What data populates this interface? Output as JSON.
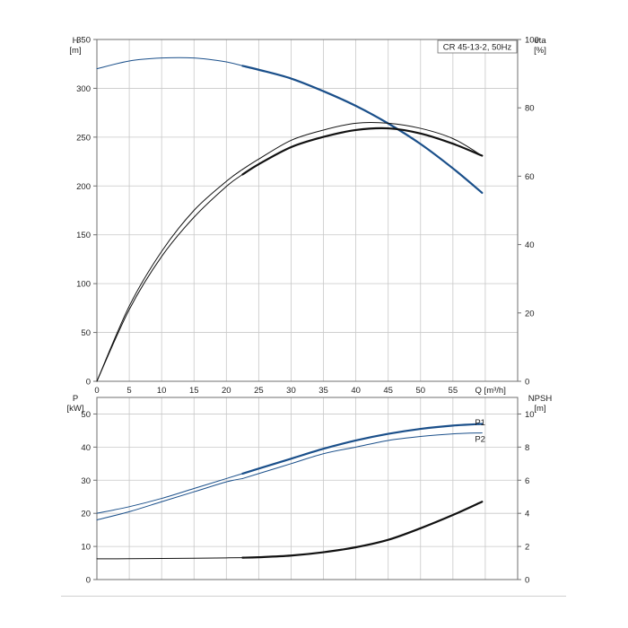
{
  "chart_data": [
    {
      "type": "line",
      "legend_box": "CR 45-13-2, 50Hz",
      "legend_placement": "top-right",
      "grid": true,
      "xlabel": "Q [m³/h]",
      "xlim": [
        0,
        65
      ],
      "x_ticks": [
        0,
        5,
        10,
        15,
        20,
        25,
        30,
        35,
        40,
        45,
        50,
        55
      ],
      "left_axis": {
        "label_line1": "H",
        "label_line2": "[m]",
        "ylim": [
          0,
          350
        ],
        "ticks": [
          0,
          50,
          100,
          150,
          200,
          250,
          300,
          350
        ]
      },
      "right_axis": {
        "label_line1": "eta",
        "label_line2": "[%]",
        "ylim": [
          0,
          100
        ],
        "ticks": [
          0,
          20,
          40,
          60,
          80,
          100
        ],
        "tick_start": 0
      },
      "series": [
        {
          "axis": "left",
          "color": "#1a4f8a",
          "x": [
            0,
            5,
            10,
            15,
            20,
            22.5
          ],
          "y": [
            320,
            328,
            331,
            331,
            327,
            323
          ],
          "weight": "thin"
        },
        {
          "axis": "left",
          "color": "#1a4f8a",
          "x": [
            22.5,
            25,
            30,
            35,
            40,
            45,
            50,
            55,
            59.5
          ],
          "y": [
            323,
            319,
            310,
            297,
            282,
            264,
            243,
            218,
            193
          ],
          "weight": "thick"
        },
        {
          "axis": "right",
          "color": "#111111",
          "x": [
            0,
            5,
            10,
            15,
            20,
            22.5
          ],
          "y": [
            0,
            22,
            38,
            50,
            58.5,
            62
          ],
          "weight": "thin"
        },
        {
          "axis": "right",
          "color": "#111111",
          "x": [
            22.5,
            25,
            30,
            35,
            40,
            45,
            50,
            55,
            59.5
          ],
          "y": [
            62,
            65,
            70.5,
            73.5,
            75.5,
            75.5,
            74,
            71,
            66
          ],
          "weight": "thin"
        },
        {
          "axis": "right",
          "color": "#111111",
          "x": [
            0,
            5,
            10,
            15,
            20,
            22.5
          ],
          "y": [
            0,
            21,
            36.5,
            48,
            57,
            60.5
          ],
          "weight": "thin"
        },
        {
          "axis": "right",
          "color": "#111111",
          "x": [
            22.5,
            25,
            30,
            35,
            40,
            45,
            50,
            55,
            59.5
          ],
          "y": [
            60.5,
            63.5,
            68.5,
            71.5,
            73.5,
            74,
            72.5,
            69.5,
            66
          ],
          "weight": "thick"
        }
      ]
    },
    {
      "type": "line",
      "grid": true,
      "xlim": [
        0,
        65
      ],
      "left_axis": {
        "label_line1": "P",
        "label_line2": "[kW]",
        "ylim": [
          0,
          55
        ],
        "ticks": [
          0,
          10,
          20,
          30,
          40,
          50
        ]
      },
      "right_axis": {
        "label_line1": "NPSH",
        "label_line2": "[m]",
        "ylim": [
          0,
          11
        ],
        "ticks": [
          0,
          2,
          4,
          6,
          8,
          10
        ],
        "tick_start": 0
      },
      "series": [
        {
          "name": "P1",
          "axis": "left",
          "color": "#1a4f8a",
          "x": [
            0,
            5,
            10,
            15,
            20,
            22.5
          ],
          "y": [
            20,
            22,
            24.5,
            27.5,
            30.5,
            32
          ],
          "weight": "thin"
        },
        {
          "name": "P1",
          "axis": "left",
          "color": "#1a4f8a",
          "x": [
            22.5,
            25,
            30,
            35,
            40,
            45,
            50,
            55,
            59.5
          ],
          "y": [
            32,
            33.5,
            36.5,
            39.5,
            42,
            44,
            45.5,
            46.5,
            47
          ],
          "weight": "thick"
        },
        {
          "name": "P2",
          "axis": "left",
          "color": "#1a4f8a",
          "x": [
            0,
            5,
            10,
            15,
            20,
            22.5
          ],
          "y": [
            18,
            20.5,
            23.5,
            26.5,
            29.5,
            30.5
          ],
          "weight": "thin"
        },
        {
          "name": "P2",
          "axis": "left",
          "color": "#1a4f8a",
          "x": [
            22.5,
            25,
            30,
            35,
            40,
            45,
            50,
            55,
            59.5
          ],
          "y": [
            30.5,
            32,
            35,
            38,
            40,
            42,
            43.2,
            44,
            44.3
          ],
          "weight": "thin"
        },
        {
          "axis": "right",
          "color": "#111111",
          "x": [
            0,
            5,
            10,
            15,
            20,
            22.5
          ],
          "y": [
            1.25,
            1.26,
            1.27,
            1.29,
            1.31,
            1.32
          ],
          "weight": "thin"
        },
        {
          "axis": "right",
          "color": "#111111",
          "x": [
            22.5,
            25,
            30,
            35,
            40,
            45,
            50,
            55,
            59.5
          ],
          "y": [
            1.32,
            1.35,
            1.45,
            1.65,
            1.95,
            2.4,
            3.1,
            3.9,
            4.7
          ],
          "weight": "thick"
        }
      ],
      "series_labels": [
        {
          "text": "P1",
          "x": 59.5,
          "y": 47.5,
          "axis": "left"
        },
        {
          "text": "P2",
          "x": 59.5,
          "y": 42.5,
          "axis": "left"
        }
      ]
    }
  ]
}
